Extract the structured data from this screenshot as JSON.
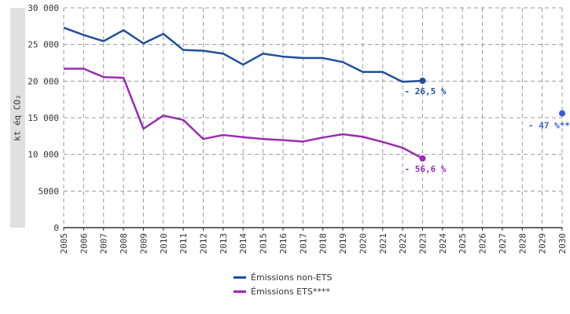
{
  "chart_data": {
    "type": "line",
    "ylabel": "kt éq CO₂",
    "x": [
      2005,
      2006,
      2007,
      2008,
      2009,
      2010,
      2011,
      2012,
      2013,
      2014,
      2015,
      2016,
      2017,
      2018,
      2019,
      2020,
      2021,
      2022,
      2023
    ],
    "x_ticks": [
      "2005",
      "2006",
      "2007",
      "2008",
      "2009",
      "2010",
      "2011",
      "2012",
      "2013",
      "2014",
      "2015",
      "2016",
      "2017",
      "2018",
      "2019",
      "2020",
      "2021",
      "2022",
      "2023",
      "2024",
      "2025",
      "2026",
      "2027",
      "2028",
      "2029",
      "2030"
    ],
    "xlim": [
      2005,
      2030
    ],
    "ylim": [
      0,
      30000
    ],
    "y_ticks": [
      "0",
      "5000",
      "10 000",
      "15 000",
      "20 000",
      "25 000",
      "30 000"
    ],
    "grid": true,
    "legend_position": "bottom",
    "series": [
      {
        "name": "Émissions non-ETS",
        "color": "#1f4e9c",
        "values": [
          27300,
          26300,
          25450,
          26950,
          25150,
          26450,
          24250,
          24150,
          23750,
          22250,
          23750,
          23350,
          23150,
          23150,
          22600,
          21250,
          21250,
          19900,
          20050
        ],
        "endpoint_label": "- 26,5 %"
      },
      {
        "name": "Émissions ETS****",
        "color": "#9b2ab0",
        "values": [
          21700,
          21700,
          20550,
          20450,
          13500,
          15300,
          14700,
          12100,
          12650,
          12350,
          12100,
          11950,
          11750,
          12300,
          12750,
          12400,
          11700,
          10900,
          9450
        ],
        "endpoint_label": "- 56,6 %"
      }
    ],
    "target": {
      "x": 2030,
      "y": 15600,
      "label": "- 47 %**",
      "color": "#3a5bd9"
    }
  }
}
